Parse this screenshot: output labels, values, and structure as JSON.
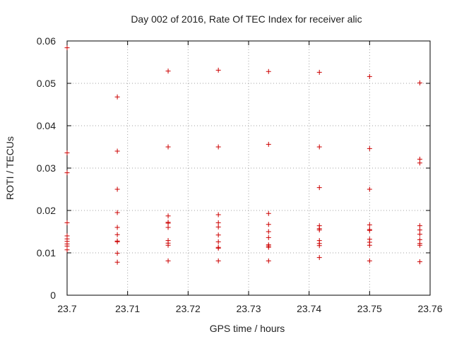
{
  "chart_data": {
    "type": "scatter",
    "title": "Day 002 of 2016, Rate Of TEC Index for receiver alic",
    "xlabel": "GPS time / hours",
    "ylabel": "ROTI / TECUs",
    "xlim": [
      23.7,
      23.76
    ],
    "ylim": [
      0,
      0.06
    ],
    "x_ticks": [
      "23.7",
      "23.71",
      "23.72",
      "23.73",
      "23.74",
      "23.75",
      "23.76"
    ],
    "y_ticks": [
      "0",
      "0.01",
      "0.02",
      "0.03",
      "0.04",
      "0.05",
      "0.06"
    ],
    "grid": true,
    "marker": "+",
    "color": "#cc0000",
    "series": [
      {
        "name": "ROTI",
        "points": [
          [
            23.7,
            0.0584
          ],
          [
            23.7,
            0.0336
          ],
          [
            23.7,
            0.0289
          ],
          [
            23.7,
            0.0171
          ],
          [
            23.7,
            0.014
          ],
          [
            23.7,
            0.0133
          ],
          [
            23.7,
            0.0127
          ],
          [
            23.7,
            0.0121
          ],
          [
            23.7,
            0.0116
          ],
          [
            23.7,
            0.0107
          ],
          [
            23.7083,
            0.0468
          ],
          [
            23.7083,
            0.034
          ],
          [
            23.7083,
            0.025
          ],
          [
            23.7083,
            0.0195
          ],
          [
            23.7083,
            0.016
          ],
          [
            23.7083,
            0.0143
          ],
          [
            23.7083,
            0.0128
          ],
          [
            23.7083,
            0.0126
          ],
          [
            23.7083,
            0.0099
          ],
          [
            23.7083,
            0.0078
          ],
          [
            23.7167,
            0.0529
          ],
          [
            23.7167,
            0.035
          ],
          [
            23.7167,
            0.0187
          ],
          [
            23.7167,
            0.0172
          ],
          [
            23.7167,
            0.017
          ],
          [
            23.7167,
            0.016
          ],
          [
            23.7167,
            0.0129
          ],
          [
            23.7167,
            0.0123
          ],
          [
            23.7167,
            0.0118
          ],
          [
            23.7167,
            0.0081
          ],
          [
            23.725,
            0.0531
          ],
          [
            23.725,
            0.035
          ],
          [
            23.725,
            0.019
          ],
          [
            23.725,
            0.0171
          ],
          [
            23.725,
            0.0161
          ],
          [
            23.725,
            0.0142
          ],
          [
            23.725,
            0.0126
          ],
          [
            23.725,
            0.0113
          ],
          [
            23.725,
            0.0111
          ],
          [
            23.725,
            0.0081
          ],
          [
            23.7333,
            0.0528
          ],
          [
            23.7333,
            0.0356
          ],
          [
            23.7333,
            0.0193
          ],
          [
            23.7333,
            0.0167
          ],
          [
            23.7333,
            0.015
          ],
          [
            23.7333,
            0.0136
          ],
          [
            23.7333,
            0.0119
          ],
          [
            23.7333,
            0.0116
          ],
          [
            23.7333,
            0.0113
          ],
          [
            23.7333,
            0.0081
          ],
          [
            23.7417,
            0.0526
          ],
          [
            23.7417,
            0.035
          ],
          [
            23.7417,
            0.0254
          ],
          [
            23.7417,
            0.0164
          ],
          [
            23.7417,
            0.0157
          ],
          [
            23.7417,
            0.0154
          ],
          [
            23.7417,
            0.0129
          ],
          [
            23.7417,
            0.0122
          ],
          [
            23.7417,
            0.0117
          ],
          [
            23.7417,
            0.0089
          ],
          [
            23.75,
            0.0516
          ],
          [
            23.75,
            0.0346
          ],
          [
            23.75,
            0.025
          ],
          [
            23.75,
            0.0166
          ],
          [
            23.75,
            0.0155
          ],
          [
            23.75,
            0.0153
          ],
          [
            23.75,
            0.0132
          ],
          [
            23.75,
            0.0125
          ],
          [
            23.75,
            0.0118
          ],
          [
            23.75,
            0.0081
          ],
          [
            23.7583,
            0.0501
          ],
          [
            23.7583,
            0.0321
          ],
          [
            23.7583,
            0.0312
          ],
          [
            23.7583,
            0.0164
          ],
          [
            23.7583,
            0.0154
          ],
          [
            23.7583,
            0.0144
          ],
          [
            23.7583,
            0.0131
          ],
          [
            23.7583,
            0.0122
          ],
          [
            23.7583,
            0.0118
          ],
          [
            23.7583,
            0.0079
          ]
        ]
      }
    ]
  }
}
